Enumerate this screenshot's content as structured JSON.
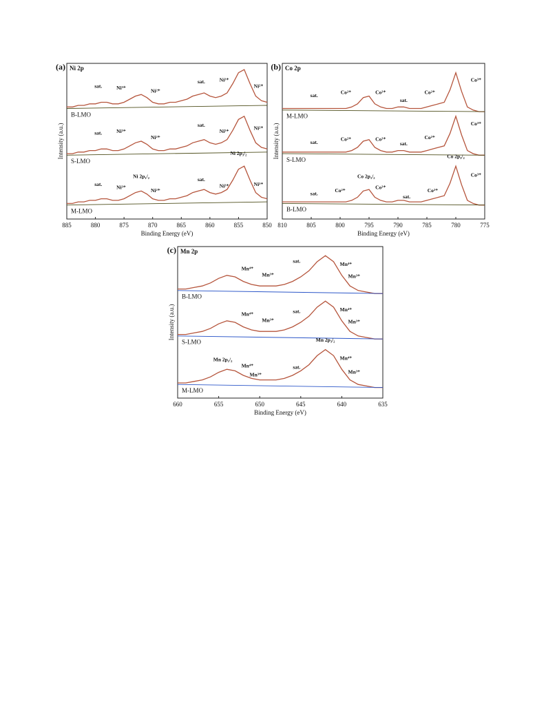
{
  "chart_data": [
    {
      "type": "line",
      "label": "(a)",
      "title": "Ni 2p",
      "xlabel": "Binding Energy (eV)",
      "ylabel": "Intensity (a.u.)",
      "xlim": [
        885,
        850
      ],
      "xticks": [
        885,
        880,
        875,
        870,
        865,
        860,
        855,
        850
      ],
      "ylim": [
        0,
        100
      ],
      "x": [
        885,
        884,
        883,
        882,
        881,
        880,
        879,
        878,
        877,
        876,
        875,
        874,
        873,
        872,
        871,
        870,
        869,
        868,
        867,
        866,
        865,
        864,
        863,
        862,
        861,
        860,
        859,
        858,
        857,
        856,
        855,
        854,
        853,
        852,
        851,
        850
      ],
      "series": [
        {
          "name": "B-LMO",
          "color": "#b5543b",
          "values": [
            72,
            72,
            73,
            73,
            74,
            74,
            75,
            75,
            74,
            74,
            75,
            77,
            79,
            80,
            78,
            75,
            74,
            74,
            75,
            75,
            76,
            77,
            79,
            80,
            81,
            79,
            78,
            79,
            81,
            87,
            94,
            96,
            87,
            79,
            76,
            75
          ]
        },
        {
          "name": "S-LMO",
          "color": "#b5543b",
          "values": [
            42,
            42,
            43,
            43,
            44,
            44,
            45,
            45,
            44,
            44,
            45,
            47,
            49,
            50,
            48,
            45,
            44,
            44,
            45,
            45,
            46,
            47,
            49,
            50,
            51,
            49,
            48,
            49,
            51,
            57,
            64,
            66,
            57,
            49,
            46,
            45
          ]
        },
        {
          "name": "M-LMO",
          "color": "#b5543b",
          "values": [
            10,
            10,
            11,
            11,
            12,
            12,
            13,
            13,
            12,
            12,
            13,
            15,
            17,
            18,
            16,
            13,
            12,
            12,
            13,
            13,
            14,
            15,
            17,
            18,
            19,
            17,
            16,
            17,
            19,
            25,
            32,
            34,
            25,
            17,
            14,
            13
          ]
        },
        {
          "color": "#4d4d1a",
          "x": [
            885,
            850
          ],
          "values": [
            71,
            73
          ]
        },
        {
          "color": "#4d4d1a",
          "x": [
            885,
            850
          ],
          "values": [
            41,
            43
          ]
        },
        {
          "color": "#4d4d1a",
          "x": [
            885,
            850
          ],
          "values": [
            9,
            11
          ]
        }
      ],
      "annotations": [
        {
          "text": "sat.",
          "x": 879.5,
          "y": 85,
          "color": "#111111"
        },
        {
          "text": "Ni³⁺",
          "x": 875.5,
          "y": 84,
          "color": "#b040c0"
        },
        {
          "text": "Ni²⁺",
          "x": 869.5,
          "y": 82,
          "color": "#20b0c8"
        },
        {
          "text": "sat.",
          "x": 861.5,
          "y": 88,
          "color": "#111111"
        },
        {
          "text": "Ni³⁺",
          "x": 857.5,
          "y": 89,
          "color": "#2a9a50"
        },
        {
          "text": "Ni²⁺",
          "x": 851.5,
          "y": 85,
          "color": "#d09a10"
        },
        {
          "text": "sat.",
          "x": 879.5,
          "y": 55,
          "color": "#111111"
        },
        {
          "text": "Ni³⁺",
          "x": 875.5,
          "y": 56,
          "color": "#b040c0"
        },
        {
          "text": "Ni²⁺",
          "x": 869.5,
          "y": 52,
          "color": "#20b0c8"
        },
        {
          "text": "sat.",
          "x": 861.5,
          "y": 60,
          "color": "#111111"
        },
        {
          "text": "Ni³⁺",
          "x": 857.5,
          "y": 56,
          "color": "#2a9a50"
        },
        {
          "text": "Ni²⁺",
          "x": 851.5,
          "y": 58,
          "color": "#d09a10"
        },
        {
          "text": "sat.",
          "x": 879.5,
          "y": 22,
          "color": "#111111"
        },
        {
          "text": "Ni³⁺",
          "x": 875.5,
          "y": 20,
          "color": "#b040c0"
        },
        {
          "text": "Ni 2p₁/₂",
          "x": 872,
          "y": 27,
          "color": "#111111"
        },
        {
          "text": "Ni²⁺",
          "x": 869.5,
          "y": 18,
          "color": "#20b0c8"
        },
        {
          "text": "sat.",
          "x": 861.5,
          "y": 25,
          "color": "#111111"
        },
        {
          "text": "Ni³⁺",
          "x": 857.5,
          "y": 21,
          "color": "#2a9a50"
        },
        {
          "text": "Ni 2p₃/₂",
          "x": 855,
          "y": 42,
          "color": "#111111"
        },
        {
          "text": "Ni²⁺",
          "x": 851.5,
          "y": 22,
          "color": "#d09a10"
        }
      ]
    },
    {
      "type": "line",
      "label": "(b)",
      "title": "Co 2p",
      "xlabel": "Binding Energy (eV)",
      "ylabel": "Intensity (a.u.)",
      "xlim": [
        810,
        775
      ],
      "xticks": [
        810,
        805,
        800,
        795,
        790,
        785,
        780,
        775
      ],
      "ylim": [
        0,
        100
      ],
      "x": [
        810,
        809,
        808,
        807,
        806,
        805,
        804,
        803,
        802,
        801,
        800,
        799,
        798,
        797,
        796,
        795,
        794,
        793,
        792,
        791,
        790,
        789,
        788,
        787,
        786,
        785,
        784,
        783,
        782,
        781,
        780,
        779,
        778,
        777,
        776,
        775
      ],
      "series": [
        {
          "name": "M-LMO",
          "color": "#b5543b",
          "values": [
            71,
            71,
            71,
            71,
            71,
            71,
            71,
            71,
            71,
            71,
            71,
            71,
            72,
            74,
            78,
            79,
            74,
            72,
            71,
            71,
            72,
            72,
            71,
            71,
            71,
            72,
            73,
            74,
            75,
            83,
            94,
            82,
            72,
            70,
            69,
            69
          ]
        },
        {
          "name": "S-LMO",
          "color": "#b5543b",
          "values": [
            43,
            43,
            43,
            43,
            43,
            43,
            43,
            43,
            43,
            43,
            43,
            43,
            44,
            46,
            50,
            51,
            46,
            44,
            43,
            43,
            44,
            44,
            43,
            43,
            43,
            44,
            45,
            46,
            47,
            55,
            66,
            54,
            44,
            42,
            41,
            41
          ]
        },
        {
          "name": "B-LMO",
          "color": "#b5543b",
          "values": [
            11,
            11,
            11,
            11,
            11,
            11,
            11,
            11,
            11,
            11,
            11,
            11,
            12,
            14,
            18,
            19,
            14,
            12,
            11,
            11,
            12,
            12,
            11,
            11,
            11,
            12,
            13,
            14,
            15,
            23,
            34,
            22,
            12,
            10,
            9,
            9
          ]
        },
        {
          "color": "#4d4d1a",
          "x": [
            810,
            775
          ],
          "values": [
            70,
            69
          ]
        },
        {
          "color": "#4d4d1a",
          "x": [
            810,
            775
          ],
          "values": [
            42,
            41
          ]
        },
        {
          "color": "#4d4d1a",
          "x": [
            810,
            775
          ],
          "values": [
            10,
            9
          ]
        }
      ],
      "annotations": [
        {
          "text": "sat.",
          "x": 804.5,
          "y": 79,
          "color": "#111111"
        },
        {
          "text": "Co²⁺",
          "x": 799,
          "y": 81,
          "color": "#d09a10"
        },
        {
          "text": "Co³⁺",
          "x": 793,
          "y": 81,
          "color": "#20b0c8"
        },
        {
          "text": "sat.",
          "x": 789,
          "y": 76,
          "color": "#111111"
        },
        {
          "text": "Co²⁺",
          "x": 784.5,
          "y": 81,
          "color": "#b040c0"
        },
        {
          "text": "Co³⁺",
          "x": 776.5,
          "y": 89,
          "color": "#2a9a50"
        },
        {
          "text": "sat.",
          "x": 804.5,
          "y": 49,
          "color": "#111111"
        },
        {
          "text": "Co²⁺",
          "x": 799,
          "y": 51,
          "color": "#d09a10"
        },
        {
          "text": "Co³⁺",
          "x": 793,
          "y": 51,
          "color": "#20b0c8"
        },
        {
          "text": "sat.",
          "x": 789,
          "y": 48,
          "color": "#111111"
        },
        {
          "text": "Co²⁺",
          "x": 784.5,
          "y": 52,
          "color": "#b040c0"
        },
        {
          "text": "Co³⁺",
          "x": 776.5,
          "y": 61,
          "color": "#2a9a50"
        },
        {
          "text": "sat.",
          "x": 804.5,
          "y": 16,
          "color": "#111111"
        },
        {
          "text": "Co²⁺",
          "x": 800,
          "y": 18,
          "color": "#d09a10"
        },
        {
          "text": "Co 2p₁/₂",
          "x": 795.5,
          "y": 27,
          "color": "#111111"
        },
        {
          "text": "Co³⁺",
          "x": 793,
          "y": 20,
          "color": "#20b0c8"
        },
        {
          "text": "sat.",
          "x": 788.5,
          "y": 14,
          "color": "#111111"
        },
        {
          "text": "Co²⁺",
          "x": 784,
          "y": 18,
          "color": "#b040c0"
        },
        {
          "text": "Co 2p₃/₂",
          "x": 780,
          "y": 40,
          "color": "#111111"
        },
        {
          "text": "Co³⁺",
          "x": 776.5,
          "y": 28,
          "color": "#2a9a50"
        }
      ]
    },
    {
      "type": "line",
      "label": "(c)",
      "title": "Mn 2p",
      "xlabel": "Binding Energy (eV)",
      "ylabel": "Intensity (a.u.)",
      "xlim": [
        660,
        635
      ],
      "xticks": [
        660,
        655,
        650,
        645,
        640,
        635
      ],
      "ylim": [
        0,
        100
      ],
      "x": [
        660,
        659,
        658,
        657,
        656,
        655,
        654,
        653,
        652,
        651,
        650,
        649,
        648,
        647,
        646,
        645,
        644,
        643,
        642,
        641,
        640,
        639,
        638,
        637,
        636,
        635
      ],
      "series": [
        {
          "name": "B-LMO",
          "color": "#b5543b",
          "values": [
            72,
            72,
            73,
            74,
            76,
            79,
            81,
            80,
            77,
            75,
            74,
            74,
            74,
            75,
            77,
            80,
            84,
            90,
            94,
            90,
            81,
            74,
            71,
            70,
            69,
            69
          ]
        },
        {
          "name": "S-LMO",
          "color": "#b5543b",
          "values": [
            42,
            42,
            43,
            44,
            46,
            49,
            51,
            50,
            47,
            45,
            44,
            44,
            44,
            45,
            47,
            50,
            54,
            60,
            64,
            60,
            51,
            44,
            41,
            40,
            39,
            39
          ]
        },
        {
          "name": "M-LMO",
          "color": "#b5543b",
          "values": [
            10,
            10,
            11,
            12,
            14,
            17,
            19,
            18,
            15,
            13,
            12,
            12,
            12,
            13,
            15,
            18,
            22,
            28,
            32,
            28,
            19,
            12,
            9,
            8,
            7,
            7
          ]
        },
        {
          "color": "#2a55c8",
          "x": [
            660,
            635
          ],
          "values": [
            71,
            69
          ]
        },
        {
          "color": "#2a55c8",
          "x": [
            660,
            635
          ],
          "values": [
            41,
            39
          ]
        },
        {
          "color": "#2a55c8",
          "x": [
            660,
            635
          ],
          "values": [
            9,
            7
          ]
        }
      ],
      "annotations": [
        {
          "text": "Mn⁴⁺",
          "x": 651.5,
          "y": 85,
          "color": "#b040c0"
        },
        {
          "text": "Mn³⁺",
          "x": 649,
          "y": 81,
          "color": "#20b0c8"
        },
        {
          "text": "sat.",
          "x": 645.5,
          "y": 90,
          "color": "#111111"
        },
        {
          "text": "Mn⁴⁺",
          "x": 639.5,
          "y": 88,
          "color": "#2a9a50"
        },
        {
          "text": "Mn³⁺",
          "x": 638.5,
          "y": 80,
          "color": "#d09a10"
        },
        {
          "text": "Mn⁴⁺",
          "x": 651.5,
          "y": 55,
          "color": "#b040c0"
        },
        {
          "text": "Mn³⁺",
          "x": 649,
          "y": 51,
          "color": "#20b0c8"
        },
        {
          "text": "sat.",
          "x": 645.5,
          "y": 57,
          "color": "#111111"
        },
        {
          "text": "Mn⁴⁺",
          "x": 639.5,
          "y": 58,
          "color": "#2a9a50"
        },
        {
          "text": "Mn³⁺",
          "x": 638.5,
          "y": 50,
          "color": "#d09a10"
        },
        {
          "text": "Mn 2p₁/₂",
          "x": 654.5,
          "y": 25,
          "color": "#111111"
        },
        {
          "text": "Mn⁴⁺",
          "x": 651.5,
          "y": 21,
          "color": "#b040c0"
        },
        {
          "text": "Mn³⁺",
          "x": 650.5,
          "y": 15,
          "color": "#20b0c8"
        },
        {
          "text": "sat.",
          "x": 645.5,
          "y": 20,
          "color": "#111111"
        },
        {
          "text": "Mn 2p₃/₂",
          "x": 642,
          "y": 38,
          "color": "#111111"
        },
        {
          "text": "Mn⁴⁺",
          "x": 639.5,
          "y": 26,
          "color": "#2a9a50"
        },
        {
          "text": "Mn³⁺",
          "x": 638.5,
          "y": 17,
          "color": "#d09a10"
        }
      ]
    }
  ]
}
